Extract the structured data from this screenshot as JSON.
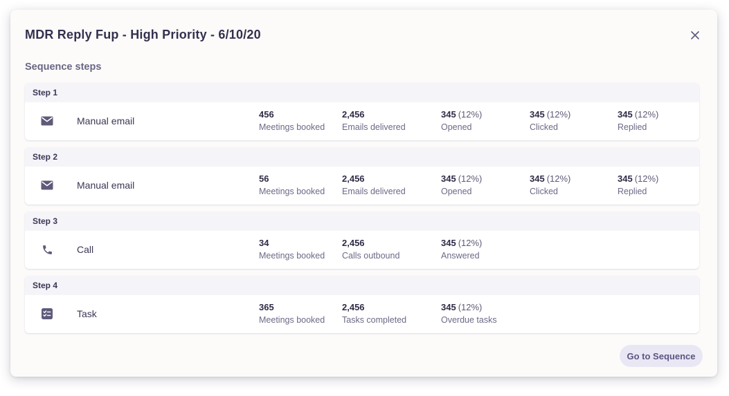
{
  "modal": {
    "title": "MDR Reply Fup - High Priority - 6/10/20",
    "close_icon": "close-icon",
    "section_title": "Sequence steps",
    "go_button_label": "Go to Sequence"
  },
  "colors": {
    "modal_background": "#fcfbfa",
    "step_header_background": "#f5f4f8",
    "icon_color": "#5e5a7a",
    "button_background": "#e9e7f3",
    "button_text": "#5a5583"
  },
  "steps": [
    {
      "label": "Step 1",
      "icon": "email-icon",
      "type": "Manual email",
      "metrics": [
        {
          "value": "456",
          "percent": "",
          "label": "Meetings booked"
        },
        {
          "value": "2,456",
          "percent": "",
          "label": "Emails delivered"
        },
        {
          "value": "345",
          "percent": "(12%)",
          "label": "Opened"
        },
        {
          "value": "345",
          "percent": "(12%)",
          "label": "Clicked"
        },
        {
          "value": "345",
          "percent": "(12%)",
          "label": "Replied"
        }
      ]
    },
    {
      "label": "Step 2",
      "icon": "email-icon",
      "type": "Manual email",
      "metrics": [
        {
          "value": "56",
          "percent": "",
          "label": "Meetings booked"
        },
        {
          "value": "2,456",
          "percent": "",
          "label": "Emails delivered"
        },
        {
          "value": "345",
          "percent": "(12%)",
          "label": "Opened"
        },
        {
          "value": "345",
          "percent": "(12%)",
          "label": "Clicked"
        },
        {
          "value": "345",
          "percent": "(12%)",
          "label": "Replied"
        }
      ]
    },
    {
      "label": "Step 3",
      "icon": "phone-icon",
      "type": "Call",
      "metrics": [
        {
          "value": "34",
          "percent": "",
          "label": "Meetings booked"
        },
        {
          "value": "2,456",
          "percent": "",
          "label": "Calls outbound"
        },
        {
          "value": "345",
          "percent": "(12%)",
          "label": "Answered"
        }
      ]
    },
    {
      "label": "Step 4",
      "icon": "task-icon",
      "type": "Task",
      "metrics": [
        {
          "value": "365",
          "percent": "",
          "label": "Meetings booked"
        },
        {
          "value": "2,456",
          "percent": "",
          "label": "Tasks completed"
        },
        {
          "value": "345",
          "percent": "(12%)",
          "label": "Overdue tasks"
        }
      ]
    }
  ]
}
